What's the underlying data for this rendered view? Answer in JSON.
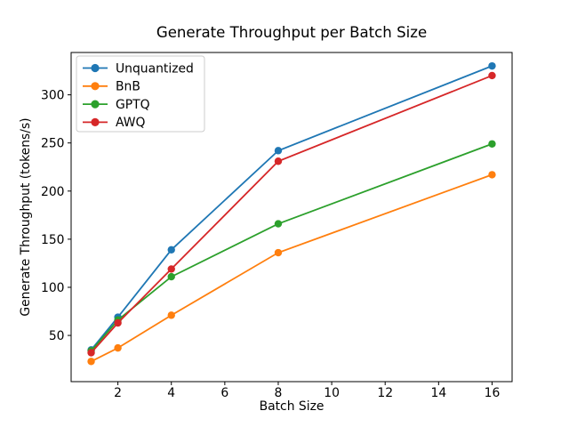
{
  "chart_data": {
    "type": "line",
    "title": "Generate Throughput per Batch Size",
    "xlabel": "Batch Size",
    "ylabel": "Generate Throughput (tokens/s)",
    "x": [
      1,
      2,
      4,
      8,
      16
    ],
    "series": [
      {
        "name": "Unquantized",
        "color": "#1f77b4",
        "values": [
          35,
          69,
          139,
          242,
          330
        ]
      },
      {
        "name": "BnB",
        "color": "#ff7f0e",
        "values": [
          23,
          37,
          71,
          136,
          217
        ]
      },
      {
        "name": "GPTQ",
        "color": "#2ca02c",
        "values": [
          34,
          66,
          111,
          166,
          249
        ]
      },
      {
        "name": "AWQ",
        "color": "#d62728",
        "values": [
          32,
          63,
          119,
          231,
          320
        ]
      }
    ],
    "xlim": [
      0.25,
      16.75
    ],
    "ylim": [
      2,
      344
    ],
    "x_ticks": [
      2,
      4,
      6,
      8,
      10,
      12,
      14,
      16
    ],
    "y_ticks": [
      50,
      100,
      150,
      200,
      250,
      300
    ],
    "legend_position": "upper left",
    "grid": false,
    "marker": "o",
    "background": "#ffffff",
    "axis_color": "#000000",
    "legend_border_color": "#cccccc"
  }
}
